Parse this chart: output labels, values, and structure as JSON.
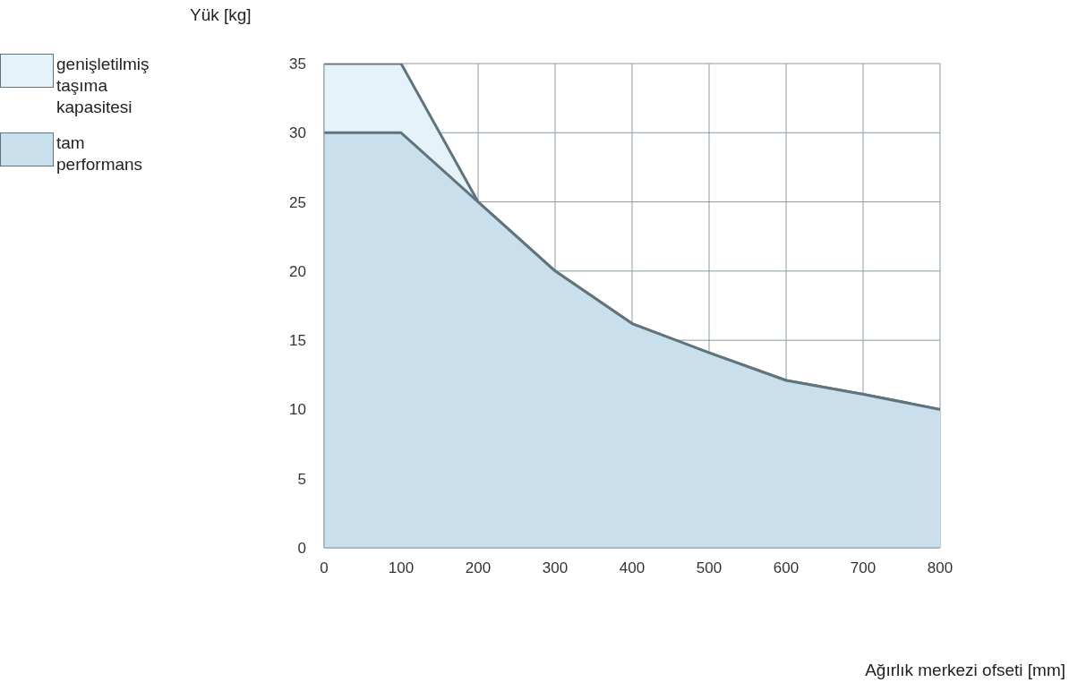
{
  "chart_data": {
    "type": "area",
    "xlabel": "Ağırlık merkezi ofseti [mm]",
    "ylabel": "Yük [kg]",
    "x": [
      0,
      100,
      200,
      300,
      400,
      500,
      600,
      700,
      800
    ],
    "series": [
      {
        "name": "genişletilmiş taşıma kapasitesi",
        "color": "#e6f2f9",
        "values": [
          35,
          35,
          25,
          20,
          16.2,
          14.1,
          12.1,
          11.1,
          10
        ]
      },
      {
        "name": "tam performans",
        "color": "#c9e0ec",
        "values": [
          30,
          30,
          25,
          20,
          16.2,
          14.1,
          12.1,
          11.1,
          10
        ]
      }
    ],
    "xlim": [
      0,
      800
    ],
    "xticks": [
      0,
      100,
      200,
      300,
      400,
      500,
      600,
      700,
      800
    ],
    "ylim": [
      0,
      35
    ],
    "yticks": [
      0,
      5,
      10,
      15,
      20,
      25,
      30,
      35
    ],
    "grid": true,
    "legend": "left"
  }
}
